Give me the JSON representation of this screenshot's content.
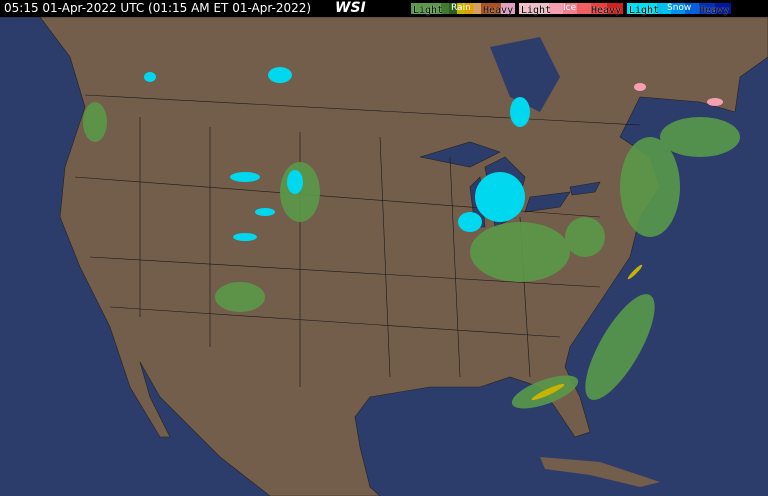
{
  "header": {
    "timestamp": "05:15 01-Apr-2022 UTC  (01:15 AM ET 01-Apr-2022)",
    "logo": "WSI"
  },
  "legend": [
    {
      "title": "Rain",
      "light": "Light",
      "heavy": "Heavy",
      "colors": [
        "#5a9a4a",
        "#3f7a2f",
        "#2d5e22",
        "#c8b400",
        "#e0a000",
        "#d6a060",
        "#b05020",
        "#8b3010"
      ]
    },
    {
      "title": "Ice",
      "light": "Light",
      "heavy": "Heavy",
      "colors": [
        "#f0c0c8",
        "#f4a0b0",
        "#f08090",
        "#f06060",
        "#e84040",
        "#d02020"
      ]
    },
    {
      "title": "Snow",
      "light": "Light",
      "heavy": "Heavy",
      "colors": [
        "#00e0f0",
        "#00c0f0",
        "#0090f0",
        "#0060e0",
        "#0030c0",
        "#0018a0"
      ]
    }
  ],
  "map_colors": {
    "land": "#735d4b",
    "water": "#2d3d6b",
    "borders": "#1a1a1a"
  }
}
